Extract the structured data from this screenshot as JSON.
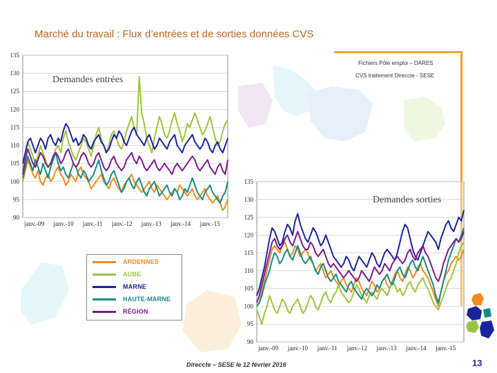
{
  "slide": {
    "title": "Marché du travail : Flux d’entrées et de sorties données CVS",
    "source_line1": "Fichiers Pôle emploi – DARES",
    "source_line2": "CVS traitement Direccte - SESE",
    "footer": "Direccte – SESE le 12 février 2016",
    "page_number": "13"
  },
  "legend": {
    "items": [
      {
        "label": "ARDENNES",
        "color": "#f08a1e"
      },
      {
        "label": "AUBE",
        "color": "#9cc43c"
      },
      {
        "label": "MARNE",
        "color": "#1a239c"
      },
      {
        "label": "HAUTE-MARNE",
        "color": "#168a84"
      },
      {
        "label": "RÉGION",
        "color": "#7a1a8a"
      }
    ]
  },
  "chart_data": [
    {
      "type": "line",
      "title": "Demandes entrées",
      "y_ticks": [
        "135",
        "130",
        "125",
        "120",
        "115",
        "110",
        "105",
        "100",
        "95",
        "90"
      ],
      "x_ticks": [
        "janv.-09",
        "janv.-10",
        "janv.-11",
        "janv.-12",
        "janv.-13",
        "janv.-14",
        "janv.-15"
      ],
      "ylim": [
        90,
        135
      ],
      "grid": true,
      "series": [
        {
          "name": "ARDENNES",
          "color": "#f08a1e",
          "values": [
            100,
            103,
            106,
            104,
            102,
            101,
            103,
            100,
            99,
            101,
            102,
            100,
            101,
            103,
            104,
            102,
            101,
            99,
            100,
            102,
            101,
            100,
            103,
            104,
            102,
            101,
            100,
            98,
            99,
            100,
            101,
            102,
            100,
            99,
            98,
            100,
            101,
            99,
            98,
            97,
            99,
            100,
            101,
            102,
            100,
            99,
            98,
            97,
            98,
            99,
            100,
            98,
            97,
            99,
            98,
            97,
            96,
            95,
            96,
            97,
            98,
            97,
            99,
            98,
            97,
            96,
            97,
            98,
            96,
            95,
            96,
            97,
            98,
            96,
            95,
            94,
            95,
            96,
            94,
            92,
            93,
            95
          ]
        },
        {
          "name": "AUBE",
          "color": "#9cc43c",
          "values": [
            104,
            108,
            111,
            109,
            107,
            105,
            107,
            110,
            108,
            106,
            104,
            105,
            107,
            109,
            110,
            108,
            112,
            114,
            111,
            109,
            107,
            106,
            108,
            110,
            112,
            111,
            109,
            107,
            110,
            113,
            115,
            112,
            110,
            108,
            110,
            113,
            114,
            112,
            110,
            109,
            111,
            114,
            116,
            118,
            115,
            113,
            129,
            119,
            116,
            112,
            110,
            108,
            112,
            115,
            118,
            116,
            113,
            112,
            114,
            117,
            119,
            116,
            114,
            111,
            113,
            116,
            115,
            117,
            119,
            117,
            115,
            113,
            114,
            116,
            118,
            115,
            112,
            110,
            111,
            114,
            116,
            117
          ]
        },
        {
          "name": "MARNE",
          "color": "#1a239c",
          "values": [
            105,
            108,
            111,
            112,
            110,
            108,
            110,
            112,
            111,
            109,
            112,
            113,
            111,
            110,
            112,
            111,
            114,
            116,
            115,
            113,
            111,
            112,
            110,
            111,
            113,
            112,
            110,
            109,
            111,
            112,
            113,
            111,
            110,
            108,
            109,
            111,
            113,
            112,
            114,
            113,
            111,
            110,
            112,
            114,
            115,
            113,
            112,
            111,
            110,
            112,
            113,
            111,
            109,
            110,
            112,
            111,
            110,
            109,
            111,
            112,
            113,
            110,
            109,
            108,
            110,
            111,
            112,
            113,
            111,
            110,
            109,
            110,
            112,
            111,
            109,
            108,
            110,
            111,
            109,
            108,
            110,
            112
          ]
        },
        {
          "name": "HAUTE-MARNE",
          "color": "#168a84",
          "values": [
            101,
            104,
            107,
            105,
            103,
            106,
            104,
            102,
            105,
            103,
            101,
            104,
            106,
            108,
            105,
            103,
            104,
            102,
            101,
            103,
            105,
            104,
            102,
            101,
            103,
            102,
            100,
            101,
            102,
            104,
            106,
            103,
            101,
            99,
            100,
            102,
            103,
            101,
            99,
            97,
            98,
            100,
            101,
            99,
            98,
            100,
            101,
            99,
            97,
            96,
            98,
            99,
            100,
            98,
            96,
            97,
            98,
            99,
            97,
            96,
            98,
            97,
            95,
            96,
            98,
            97,
            99,
            101,
            99,
            97,
            96,
            95,
            97,
            98,
            99,
            97,
            96,
            95,
            94,
            96,
            97,
            100
          ]
        },
        {
          "name": "RÉGION",
          "color": "#7a1a8a",
          "values": [
            102,
            106,
            109,
            107,
            105,
            104,
            106,
            108,
            107,
            105,
            104,
            105,
            107,
            108,
            107,
            105,
            106,
            108,
            109,
            107,
            105,
            104,
            105,
            107,
            108,
            107,
            105,
            104,
            105,
            107,
            108,
            106,
            104,
            103,
            104,
            106,
            107,
            105,
            104,
            103,
            104,
            106,
            107,
            108,
            106,
            105,
            107,
            106,
            104,
            103,
            104,
            105,
            106,
            104,
            103,
            104,
            105,
            104,
            103,
            102,
            104,
            105,
            104,
            103,
            104,
            105,
            106,
            107,
            106,
            104,
            103,
            104,
            105,
            106,
            104,
            103,
            102,
            104,
            105,
            103,
            102,
            106
          ]
        }
      ]
    },
    {
      "type": "line",
      "title": "Demandes sorties",
      "y_ticks": [
        "135",
        "130",
        "125",
        "120",
        "115",
        "110",
        "105",
        "100",
        "95",
        "90"
      ],
      "x_ticks": [
        "janv.-09",
        "janv.-10",
        "janv.-11",
        "janv.-12",
        "janv.-13",
        "janv.-14",
        "janv.-15"
      ],
      "ylim": [
        90,
        135
      ],
      "grid": true,
      "series": [
        {
          "name": "ARDENNES",
          "color": "#f08a1e",
          "values": [
            100,
            101,
            104,
            107,
            110,
            113,
            116,
            117,
            116,
            115,
            117,
            118,
            116,
            114,
            115,
            117,
            116,
            114,
            115,
            116,
            115,
            113,
            112,
            110,
            111,
            112,
            110,
            108,
            109,
            110,
            108,
            107,
            106,
            107,
            108,
            106,
            105,
            104,
            106,
            108,
            107,
            105,
            104,
            103,
            105,
            107,
            106,
            104,
            105,
            107,
            108,
            106,
            105,
            107,
            109,
            110,
            108,
            107,
            109,
            111,
            110,
            108,
            109,
            111,
            112,
            110,
            109,
            108,
            106,
            104,
            102,
            100,
            104,
            107,
            109,
            110,
            112,
            113,
            114,
            113,
            114,
            116
          ]
        },
        {
          "name": "AUBE",
          "color": "#9cc43c",
          "values": [
            99,
            97,
            95,
            98,
            100,
            103,
            101,
            99,
            98,
            100,
            102,
            101,
            99,
            98,
            100,
            101,
            102,
            100,
            98,
            99,
            101,
            103,
            102,
            100,
            99,
            101,
            103,
            104,
            102,
            101,
            103,
            104,
            106,
            104,
            103,
            102,
            101,
            102,
            104,
            106,
            105,
            103,
            102,
            101,
            103,
            104,
            103,
            102,
            104,
            105,
            104,
            103,
            105,
            107,
            106,
            104,
            105,
            103,
            104,
            106,
            107,
            105,
            104,
            106,
            107,
            108,
            106,
            105,
            103,
            101,
            100,
            99,
            101,
            103,
            105,
            107,
            108,
            110,
            112,
            115,
            117,
            118
          ]
        },
        {
          "name": "MARNE",
          "color": "#1a239c",
          "values": [
            103,
            105,
            108,
            111,
            115,
            119,
            122,
            121,
            119,
            117,
            118,
            121,
            123,
            122,
            120,
            124,
            126,
            123,
            121,
            119,
            118,
            120,
            122,
            121,
            119,
            117,
            118,
            120,
            118,
            116,
            114,
            113,
            112,
            111,
            112,
            114,
            113,
            111,
            110,
            112,
            114,
            113,
            112,
            111,
            113,
            115,
            114,
            112,
            111,
            113,
            115,
            116,
            115,
            114,
            113,
            115,
            118,
            121,
            123,
            122,
            119,
            116,
            114,
            113,
            115,
            117,
            119,
            121,
            120,
            119,
            118,
            116,
            119,
            121,
            123,
            124,
            122,
            121,
            123,
            125,
            124,
            127
          ]
        },
        {
          "name": "HAUTE-MARNE",
          "color": "#168a84",
          "values": [
            100,
            101,
            103,
            106,
            108,
            110,
            113,
            115,
            114,
            112,
            113,
            115,
            116,
            114,
            113,
            115,
            117,
            115,
            113,
            112,
            113,
            114,
            112,
            110,
            109,
            111,
            112,
            110,
            108,
            107,
            108,
            109,
            107,
            106,
            105,
            104,
            106,
            107,
            105,
            104,
            103,
            102,
            104,
            105,
            104,
            103,
            104,
            106,
            105,
            107,
            108,
            109,
            107,
            106,
            108,
            110,
            111,
            109,
            108,
            110,
            112,
            113,
            111,
            110,
            112,
            114,
            112,
            110,
            108,
            106,
            103,
            101,
            104,
            107,
            110,
            113,
            115,
            117,
            119,
            118,
            120,
            122
          ]
        },
        {
          "name": "RÉGION",
          "color": "#7a1a8a",
          "values": [
            101,
            103,
            106,
            109,
            112,
            115,
            118,
            119,
            117,
            116,
            117,
            119,
            120,
            118,
            117,
            119,
            121,
            119,
            117,
            116,
            116,
            118,
            117,
            115,
            114,
            115,
            116,
            114,
            112,
            111,
            112,
            111,
            110,
            109,
            108,
            109,
            110,
            109,
            108,
            107,
            108,
            110,
            109,
            108,
            107,
            109,
            111,
            110,
            109,
            110,
            112,
            111,
            110,
            112,
            113,
            114,
            113,
            112,
            113,
            115,
            116,
            114,
            113,
            115,
            116,
            117,
            115,
            114,
            112,
            110,
            108,
            107,
            109,
            112,
            114,
            116,
            117,
            118,
            119,
            118,
            119,
            121
          ]
        }
      ]
    }
  ]
}
